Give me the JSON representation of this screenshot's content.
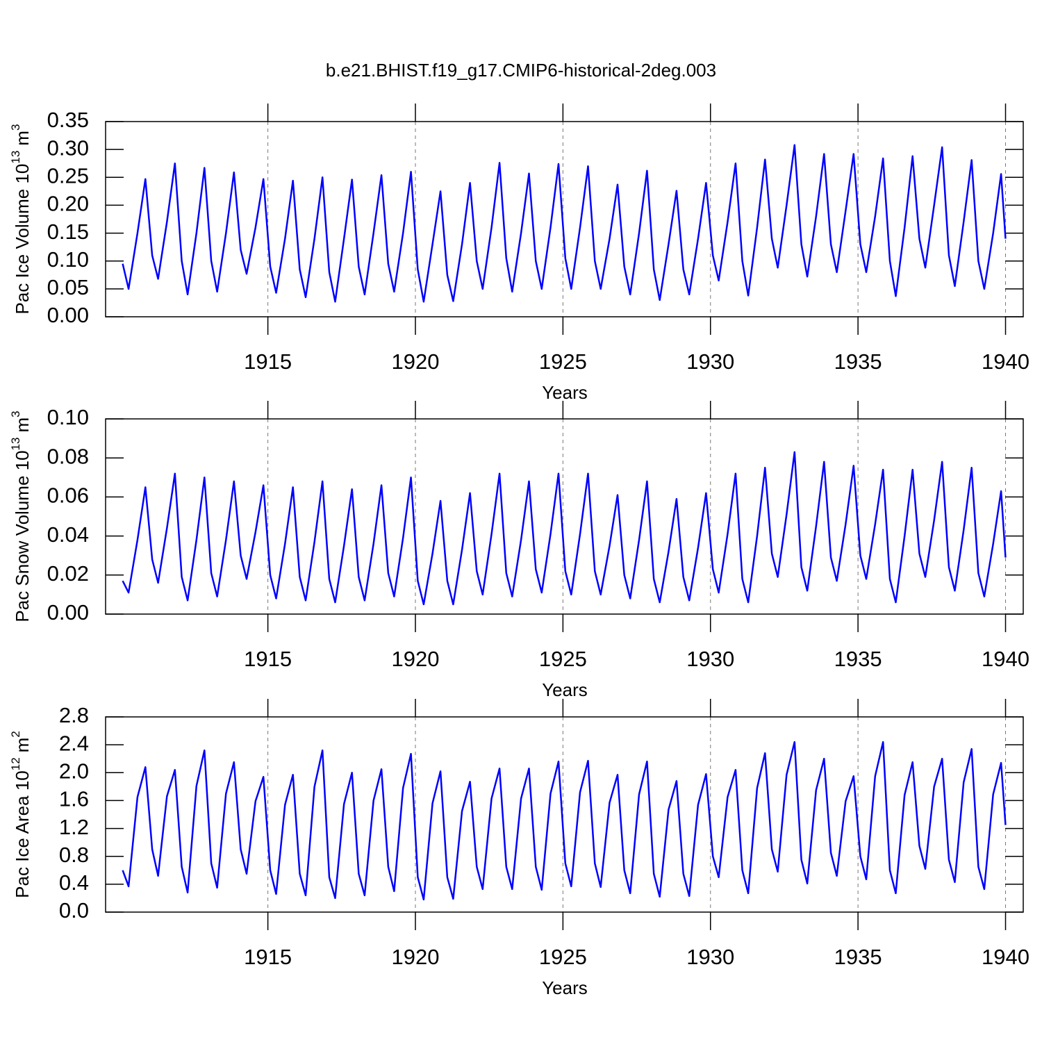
{
  "title": "b.e21.BHIST.f19_g17.CMIP6-historical-2deg.003",
  "chart_data": [
    {
      "type": "line",
      "ylabel": [
        "Pac Ice Volume 10",
        "13",
        "m",
        "3"
      ],
      "xlabel": "Years",
      "color": "#0000ff",
      "xlim": [
        1909.5,
        1940.6
      ],
      "xticks": [
        1915,
        1920,
        1925,
        1930,
        1935,
        1940
      ],
      "grid": true,
      "ylim": [
        0,
        0.35
      ],
      "yticks": [
        {
          "value": 0,
          "label": "0.00"
        },
        0.05,
        {
          "value": 0.1,
          "label": "0.10"
        },
        0.15,
        {
          "value": 0.2,
          "label": "0.20"
        },
        0.25,
        {
          "value": 0.3,
          "label": "0.30"
        },
        0.35
      ],
      "x": [
        1910.08,
        1910.28,
        1910.58,
        1910.85,
        1911.08,
        1911.28,
        1911.58,
        1911.85,
        1912.08,
        1912.28,
        1912.58,
        1912.85,
        1913.08,
        1913.28,
        1913.58,
        1913.85,
        1914.08,
        1914.28,
        1914.58,
        1914.85,
        1915.08,
        1915.28,
        1915.58,
        1915.85,
        1916.08,
        1916.28,
        1916.58,
        1916.85,
        1917.08,
        1917.28,
        1917.58,
        1917.85,
        1918.08,
        1918.28,
        1918.58,
        1918.85,
        1919.08,
        1919.28,
        1919.58,
        1919.85,
        1920.08,
        1920.28,
        1920.58,
        1920.85,
        1921.08,
        1921.28,
        1921.58,
        1921.85,
        1922.08,
        1922.28,
        1922.58,
        1922.85,
        1923.08,
        1923.28,
        1923.58,
        1923.85,
        1924.08,
        1924.28,
        1924.58,
        1924.85,
        1925.08,
        1925.28,
        1925.58,
        1925.85,
        1926.08,
        1926.28,
        1926.58,
        1926.85,
        1927.08,
        1927.28,
        1927.58,
        1927.85,
        1928.08,
        1928.28,
        1928.58,
        1928.85,
        1929.08,
        1929.28,
        1929.58,
        1929.85,
        1930.08,
        1930.28,
        1930.58,
        1930.85,
        1931.08,
        1931.28,
        1931.58,
        1931.85,
        1932.08,
        1932.28,
        1932.58,
        1932.85,
        1933.08,
        1933.28,
        1933.58,
        1933.85,
        1934.08,
        1934.28,
        1934.58,
        1934.85,
        1935.08,
        1935.28,
        1935.58,
        1935.85,
        1936.08,
        1936.28,
        1936.58,
        1936.85,
        1937.08,
        1937.28,
        1937.58,
        1937.85,
        1938.08,
        1938.28,
        1938.58,
        1938.85,
        1939.08,
        1939.28,
        1939.58,
        1939.85,
        1940.0
      ],
      "values": [
        0.095,
        0.05,
        0.15,
        0.247,
        0.11,
        0.068,
        0.17,
        0.275,
        0.1,
        0.04,
        0.15,
        0.267,
        0.1,
        0.045,
        0.15,
        0.259,
        0.12,
        0.077,
        0.16,
        0.247,
        0.09,
        0.043,
        0.14,
        0.244,
        0.085,
        0.035,
        0.14,
        0.25,
        0.08,
        0.027,
        0.14,
        0.246,
        0.09,
        0.04,
        0.15,
        0.254,
        0.095,
        0.045,
        0.15,
        0.26,
        0.085,
        0.027,
        0.13,
        0.225,
        0.075,
        0.028,
        0.13,
        0.24,
        0.1,
        0.05,
        0.16,
        0.276,
        0.105,
        0.045,
        0.15,
        0.257,
        0.1,
        0.05,
        0.16,
        0.274,
        0.105,
        0.05,
        0.16,
        0.27,
        0.1,
        0.05,
        0.14,
        0.237,
        0.09,
        0.04,
        0.15,
        0.262,
        0.085,
        0.03,
        0.13,
        0.226,
        0.085,
        0.04,
        0.14,
        0.24,
        0.11,
        0.065,
        0.17,
        0.275,
        0.1,
        0.038,
        0.16,
        0.282,
        0.14,
        0.088,
        0.2,
        0.308,
        0.13,
        0.072,
        0.18,
        0.292,
        0.13,
        0.08,
        0.19,
        0.292,
        0.13,
        0.08,
        0.18,
        0.284,
        0.1,
        0.037,
        0.16,
        0.288,
        0.14,
        0.088,
        0.2,
        0.304,
        0.11,
        0.055,
        0.17,
        0.281,
        0.1,
        0.05,
        0.15,
        0.256,
        0.14
      ]
    },
    {
      "type": "line",
      "ylabel": [
        "Pac Snow Volume 10",
        "13",
        "m",
        "3"
      ],
      "xlabel": "Years",
      "color": "#0000ff",
      "xlim": [
        1909.5,
        1940.6
      ],
      "xticks": [
        1915,
        1920,
        1925,
        1930,
        1935,
        1940
      ],
      "grid": true,
      "ylim": [
        0,
        0.1
      ],
      "yticks": [
        {
          "value": 0,
          "label": "0.00"
        },
        0.02,
        0.04,
        0.06,
        0.08,
        {
          "value": 0.1,
          "label": "0.10"
        }
      ],
      "x": [
        1910.08,
        1910.28,
        1910.58,
        1910.85,
        1911.08,
        1911.28,
        1911.58,
        1911.85,
        1912.08,
        1912.28,
        1912.58,
        1912.85,
        1913.08,
        1913.28,
        1913.58,
        1913.85,
        1914.08,
        1914.28,
        1914.58,
        1914.85,
        1915.08,
        1915.28,
        1915.58,
        1915.85,
        1916.08,
        1916.28,
        1916.58,
        1916.85,
        1917.08,
        1917.28,
        1917.58,
        1917.85,
        1918.08,
        1918.28,
        1918.58,
        1918.85,
        1919.08,
        1919.28,
        1919.58,
        1919.85,
        1920.08,
        1920.28,
        1920.58,
        1920.85,
        1921.08,
        1921.28,
        1921.58,
        1921.85,
        1922.08,
        1922.28,
        1922.58,
        1922.85,
        1923.08,
        1923.28,
        1923.58,
        1923.85,
        1924.08,
        1924.28,
        1924.58,
        1924.85,
        1925.08,
        1925.28,
        1925.58,
        1925.85,
        1926.08,
        1926.28,
        1926.58,
        1926.85,
        1927.08,
        1927.28,
        1927.58,
        1927.85,
        1928.08,
        1928.28,
        1928.58,
        1928.85,
        1929.08,
        1929.28,
        1929.58,
        1929.85,
        1930.08,
        1930.28,
        1930.58,
        1930.85,
        1931.08,
        1931.28,
        1931.58,
        1931.85,
        1932.08,
        1932.28,
        1932.58,
        1932.85,
        1933.08,
        1933.28,
        1933.58,
        1933.85,
        1934.08,
        1934.28,
        1934.58,
        1934.85,
        1935.08,
        1935.28,
        1935.58,
        1935.85,
        1936.08,
        1936.28,
        1936.58,
        1936.85,
        1937.08,
        1937.28,
        1937.58,
        1937.85,
        1938.08,
        1938.28,
        1938.58,
        1938.85,
        1939.08,
        1939.28,
        1939.58,
        1939.85,
        1940.0
      ],
      "values": [
        0.017,
        0.011,
        0.038,
        0.065,
        0.028,
        0.016,
        0.044,
        0.072,
        0.019,
        0.007,
        0.038,
        0.07,
        0.021,
        0.009,
        0.038,
        0.068,
        0.03,
        0.018,
        0.042,
        0.066,
        0.02,
        0.008,
        0.036,
        0.065,
        0.019,
        0.007,
        0.037,
        0.068,
        0.018,
        0.006,
        0.035,
        0.064,
        0.019,
        0.007,
        0.036,
        0.066,
        0.021,
        0.009,
        0.039,
        0.07,
        0.017,
        0.005,
        0.031,
        0.058,
        0.017,
        0.005,
        0.033,
        0.062,
        0.022,
        0.01,
        0.041,
        0.072,
        0.021,
        0.009,
        0.038,
        0.068,
        0.023,
        0.011,
        0.041,
        0.072,
        0.022,
        0.01,
        0.041,
        0.072,
        0.022,
        0.01,
        0.035,
        0.061,
        0.02,
        0.008,
        0.038,
        0.068,
        0.018,
        0.006,
        0.032,
        0.059,
        0.019,
        0.007,
        0.034,
        0.062,
        0.023,
        0.011,
        0.041,
        0.072,
        0.018,
        0.006,
        0.04,
        0.075,
        0.031,
        0.019,
        0.051,
        0.083,
        0.024,
        0.012,
        0.045,
        0.078,
        0.029,
        0.017,
        0.046,
        0.076,
        0.03,
        0.018,
        0.046,
        0.074,
        0.018,
        0.006,
        0.04,
        0.074,
        0.031,
        0.019,
        0.048,
        0.078,
        0.024,
        0.012,
        0.043,
        0.075,
        0.021,
        0.009,
        0.036,
        0.063,
        0.029
      ]
    },
    {
      "type": "line",
      "ylabel": [
        "Pac Ice Area 10",
        "12",
        "m",
        "2"
      ],
      "xlabel": "Years",
      "color": "#0000ff",
      "xlim": [
        1909.5,
        1940.6
      ],
      "xticks": [
        1915,
        1920,
        1925,
        1930,
        1935,
        1940
      ],
      "grid": true,
      "ylim": [
        0,
        2.8
      ],
      "yticks": [
        {
          "value": 0,
          "label": "0.0"
        },
        0.4,
        0.8,
        1.2,
        1.6,
        {
          "value": 2,
          "label": "2.0"
        },
        2.4,
        2.8
      ],
      "x": [
        1910.08,
        1910.28,
        1910.58,
        1910.85,
        1911.08,
        1911.28,
        1911.58,
        1911.85,
        1912.08,
        1912.28,
        1912.58,
        1912.85,
        1913.08,
        1913.28,
        1913.58,
        1913.85,
        1914.08,
        1914.28,
        1914.58,
        1914.85,
        1915.08,
        1915.28,
        1915.58,
        1915.85,
        1916.08,
        1916.28,
        1916.58,
        1916.85,
        1917.08,
        1917.28,
        1917.58,
        1917.85,
        1918.08,
        1918.28,
        1918.58,
        1918.85,
        1919.08,
        1919.28,
        1919.58,
        1919.85,
        1920.08,
        1920.28,
        1920.58,
        1920.85,
        1921.08,
        1921.28,
        1921.58,
        1921.85,
        1922.08,
        1922.28,
        1922.58,
        1922.85,
        1923.08,
        1923.28,
        1923.58,
        1923.85,
        1924.08,
        1924.28,
        1924.58,
        1924.85,
        1925.08,
        1925.28,
        1925.58,
        1925.85,
        1926.08,
        1926.28,
        1926.58,
        1926.85,
        1927.08,
        1927.28,
        1927.58,
        1927.85,
        1928.08,
        1928.28,
        1928.58,
        1928.85,
        1929.08,
        1929.28,
        1929.58,
        1929.85,
        1930.08,
        1930.28,
        1930.58,
        1930.85,
        1931.08,
        1931.28,
        1931.58,
        1931.85,
        1932.08,
        1932.28,
        1932.58,
        1932.85,
        1933.08,
        1933.28,
        1933.58,
        1933.85,
        1934.08,
        1934.28,
        1934.58,
        1934.85,
        1935.08,
        1935.28,
        1935.58,
        1935.85,
        1936.08,
        1936.28,
        1936.58,
        1936.85,
        1937.08,
        1937.28,
        1937.58,
        1937.85,
        1938.08,
        1938.28,
        1938.58,
        1938.85,
        1939.08,
        1939.28,
        1939.58,
        1939.85,
        1940.0
      ],
      "values": [
        0.6,
        0.37,
        1.65,
        2.08,
        0.9,
        0.52,
        1.66,
        2.04,
        0.65,
        0.28,
        1.81,
        2.32,
        0.7,
        0.35,
        1.7,
        2.15,
        0.9,
        0.55,
        1.59,
        1.94,
        0.6,
        0.26,
        1.54,
        1.97,
        0.55,
        0.24,
        1.8,
        2.32,
        0.5,
        0.2,
        1.55,
        2.0,
        0.55,
        0.24,
        1.6,
        2.05,
        0.65,
        0.3,
        1.78,
        2.27,
        0.5,
        0.18,
        1.56,
        2.02,
        0.5,
        0.19,
        1.45,
        1.87,
        0.65,
        0.33,
        1.63,
        2.06,
        0.65,
        0.33,
        1.63,
        2.06,
        0.65,
        0.32,
        1.7,
        2.16,
        0.7,
        0.37,
        1.72,
        2.17,
        0.7,
        0.36,
        1.57,
        1.97,
        0.6,
        0.27,
        1.69,
        2.16,
        0.55,
        0.22,
        1.47,
        1.88,
        0.55,
        0.23,
        1.54,
        1.98,
        0.8,
        0.5,
        1.65,
        2.04,
        0.6,
        0.27,
        1.78,
        2.28,
        0.9,
        0.58,
        1.97,
        2.44,
        0.75,
        0.41,
        1.75,
        2.2,
        0.85,
        0.52,
        1.59,
        1.95,
        0.8,
        0.47,
        1.95,
        2.44,
        0.6,
        0.27,
        1.68,
        2.15,
        0.95,
        0.62,
        1.8,
        2.2,
        0.75,
        0.43,
        1.86,
        2.34,
        0.65,
        0.33,
        1.69,
        2.14,
        1.25
      ]
    }
  ]
}
